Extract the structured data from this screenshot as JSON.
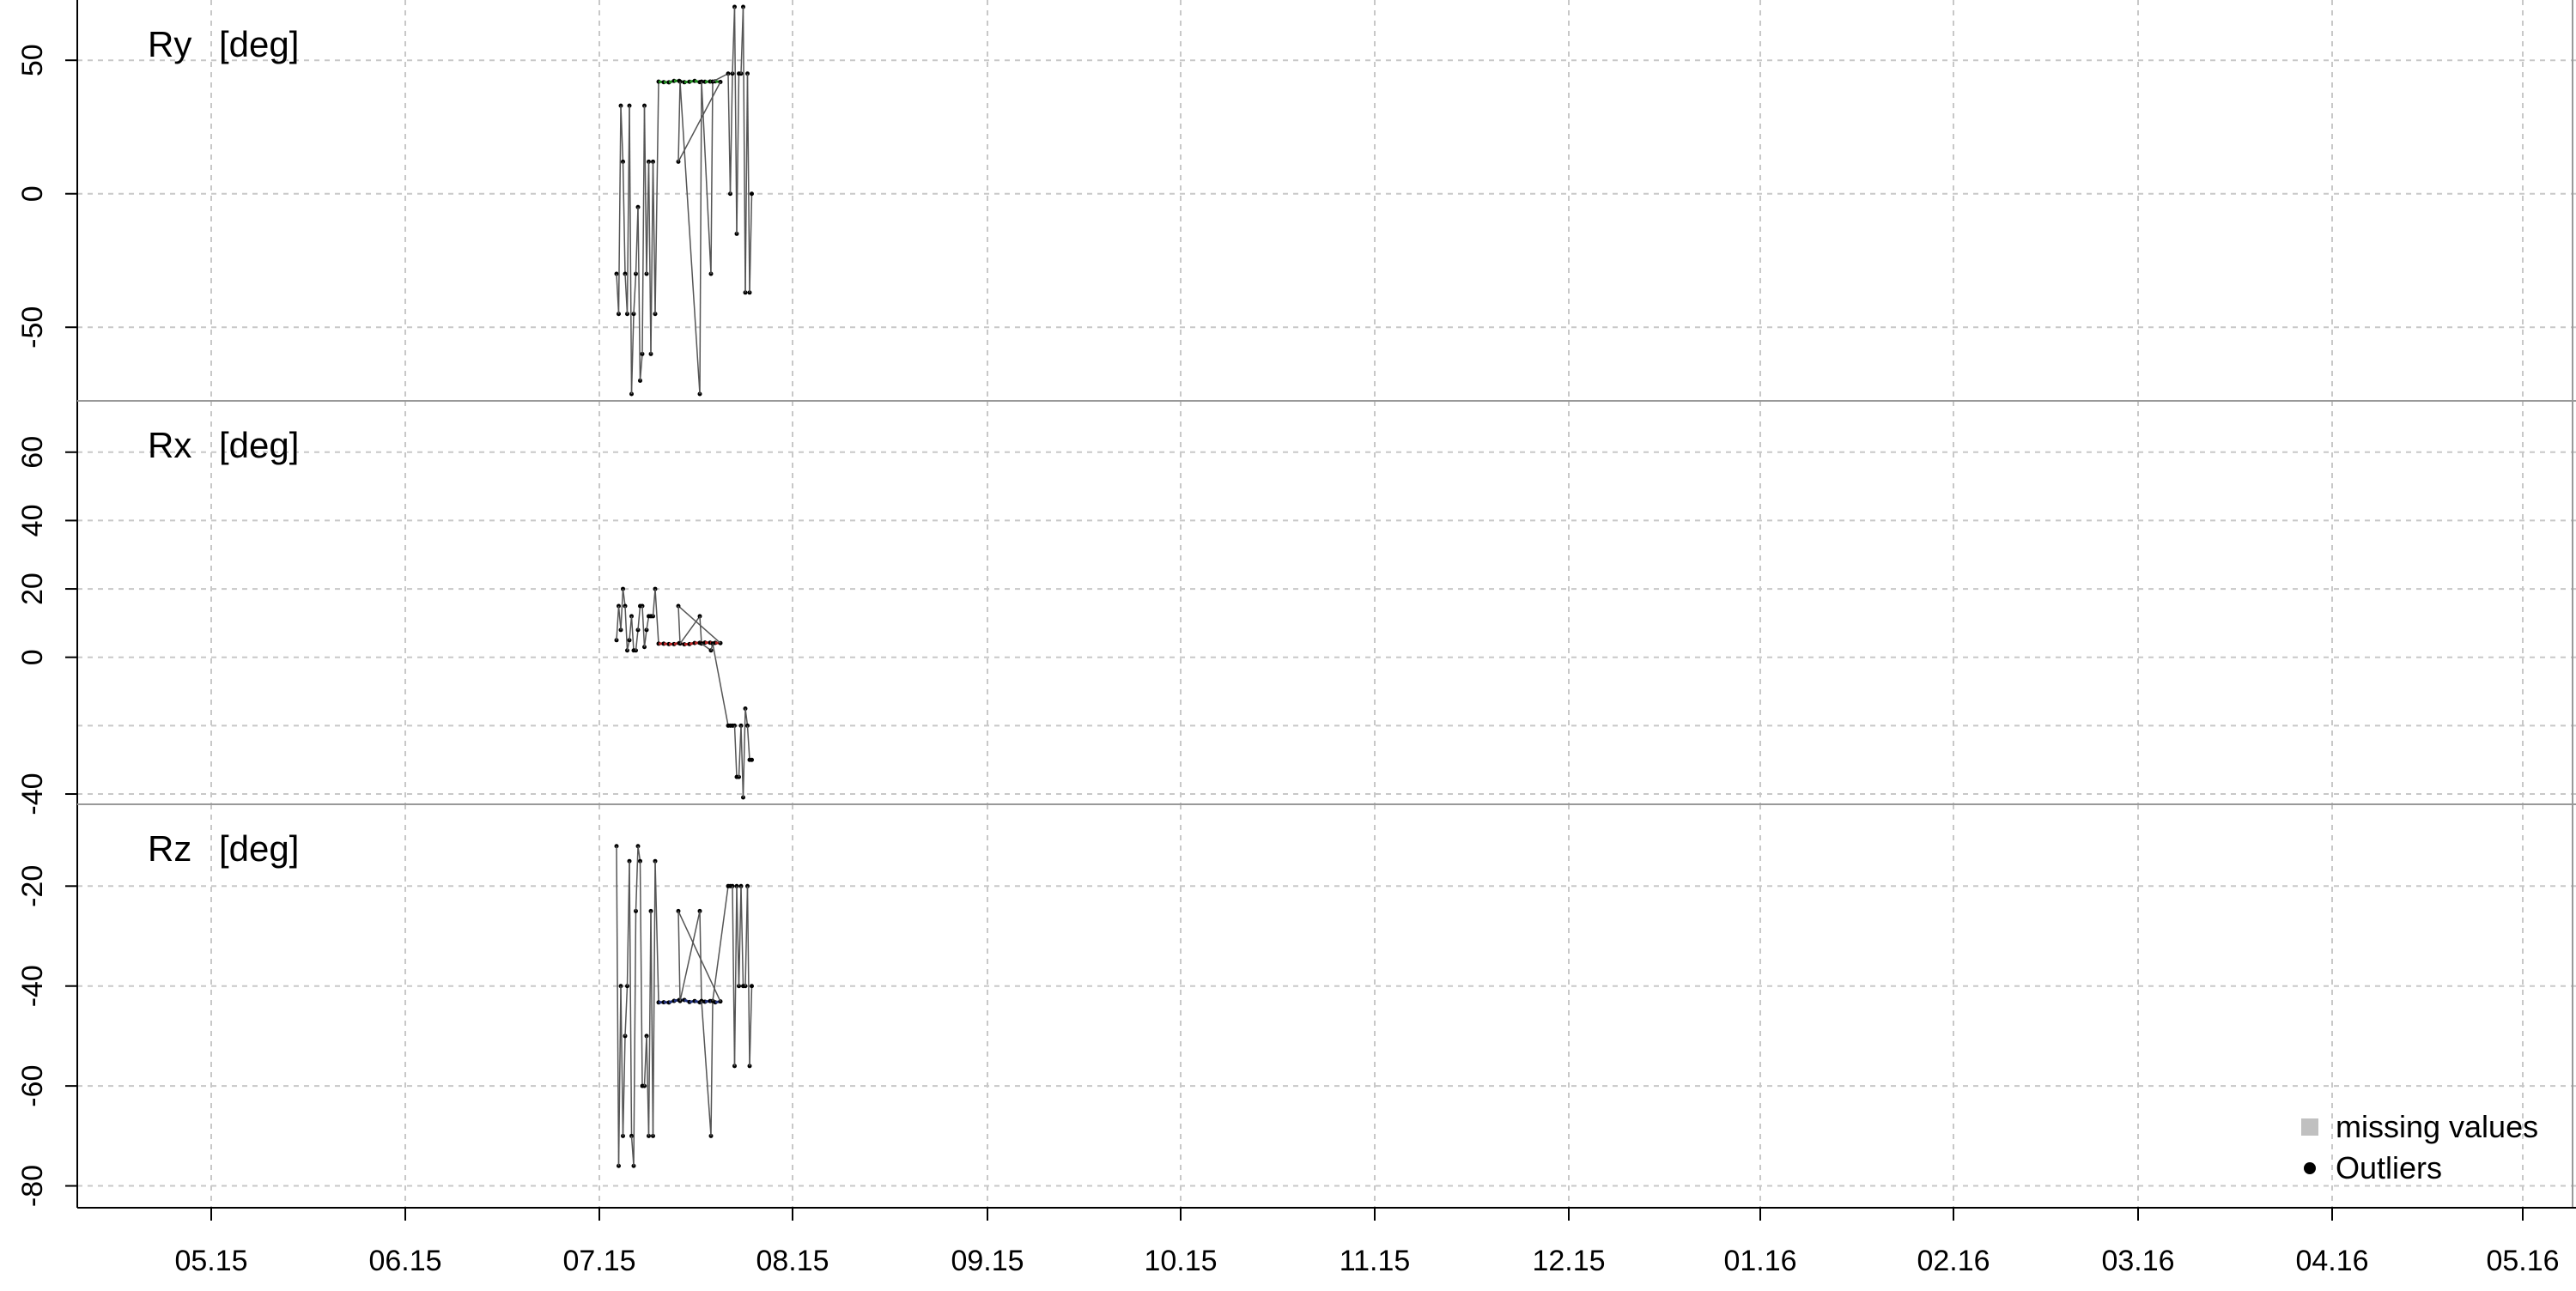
{
  "chart_data": [
    {
      "type": "line",
      "panel_label": "Ry",
      "unit": "[deg]",
      "ylim": [
        -75,
        70
      ],
      "yticks": [
        50,
        0,
        -50
      ],
      "grid": true,
      "color": "#1e8c1e"
    },
    {
      "type": "line",
      "panel_label": "Rx",
      "unit": "[deg]",
      "ylim": [
        -41,
        73
      ],
      "yticks": [
        60,
        40,
        20,
        0,
        -40
      ],
      "ygrid": [
        60,
        40,
        20,
        0,
        -20,
        -40
      ],
      "grid": true,
      "color": "#b32222"
    },
    {
      "type": "line",
      "panel_label": "Rz",
      "unit": "[deg]",
      "ylim": [
        -83,
        -5
      ],
      "yticks": [
        -20,
        -40,
        -60,
        -80
      ],
      "grid": true,
      "color": "#1f2f7a"
    }
  ],
  "x_axis": {
    "tick_labels": [
      "05.15",
      "06.15",
      "07.15",
      "08.15",
      "09.15",
      "10.15",
      "11.15",
      "12.15",
      "01.16",
      "02.16",
      "03.16",
      "04.16",
      "05.16"
    ]
  },
  "legend": {
    "placement": "bottom-right",
    "items": [
      {
        "label": "missing values",
        "marker": "square",
        "color": "#c0c0c0"
      },
      {
        "label": "Outliers",
        "marker": "circle",
        "color": "#000000"
      }
    ]
  }
}
